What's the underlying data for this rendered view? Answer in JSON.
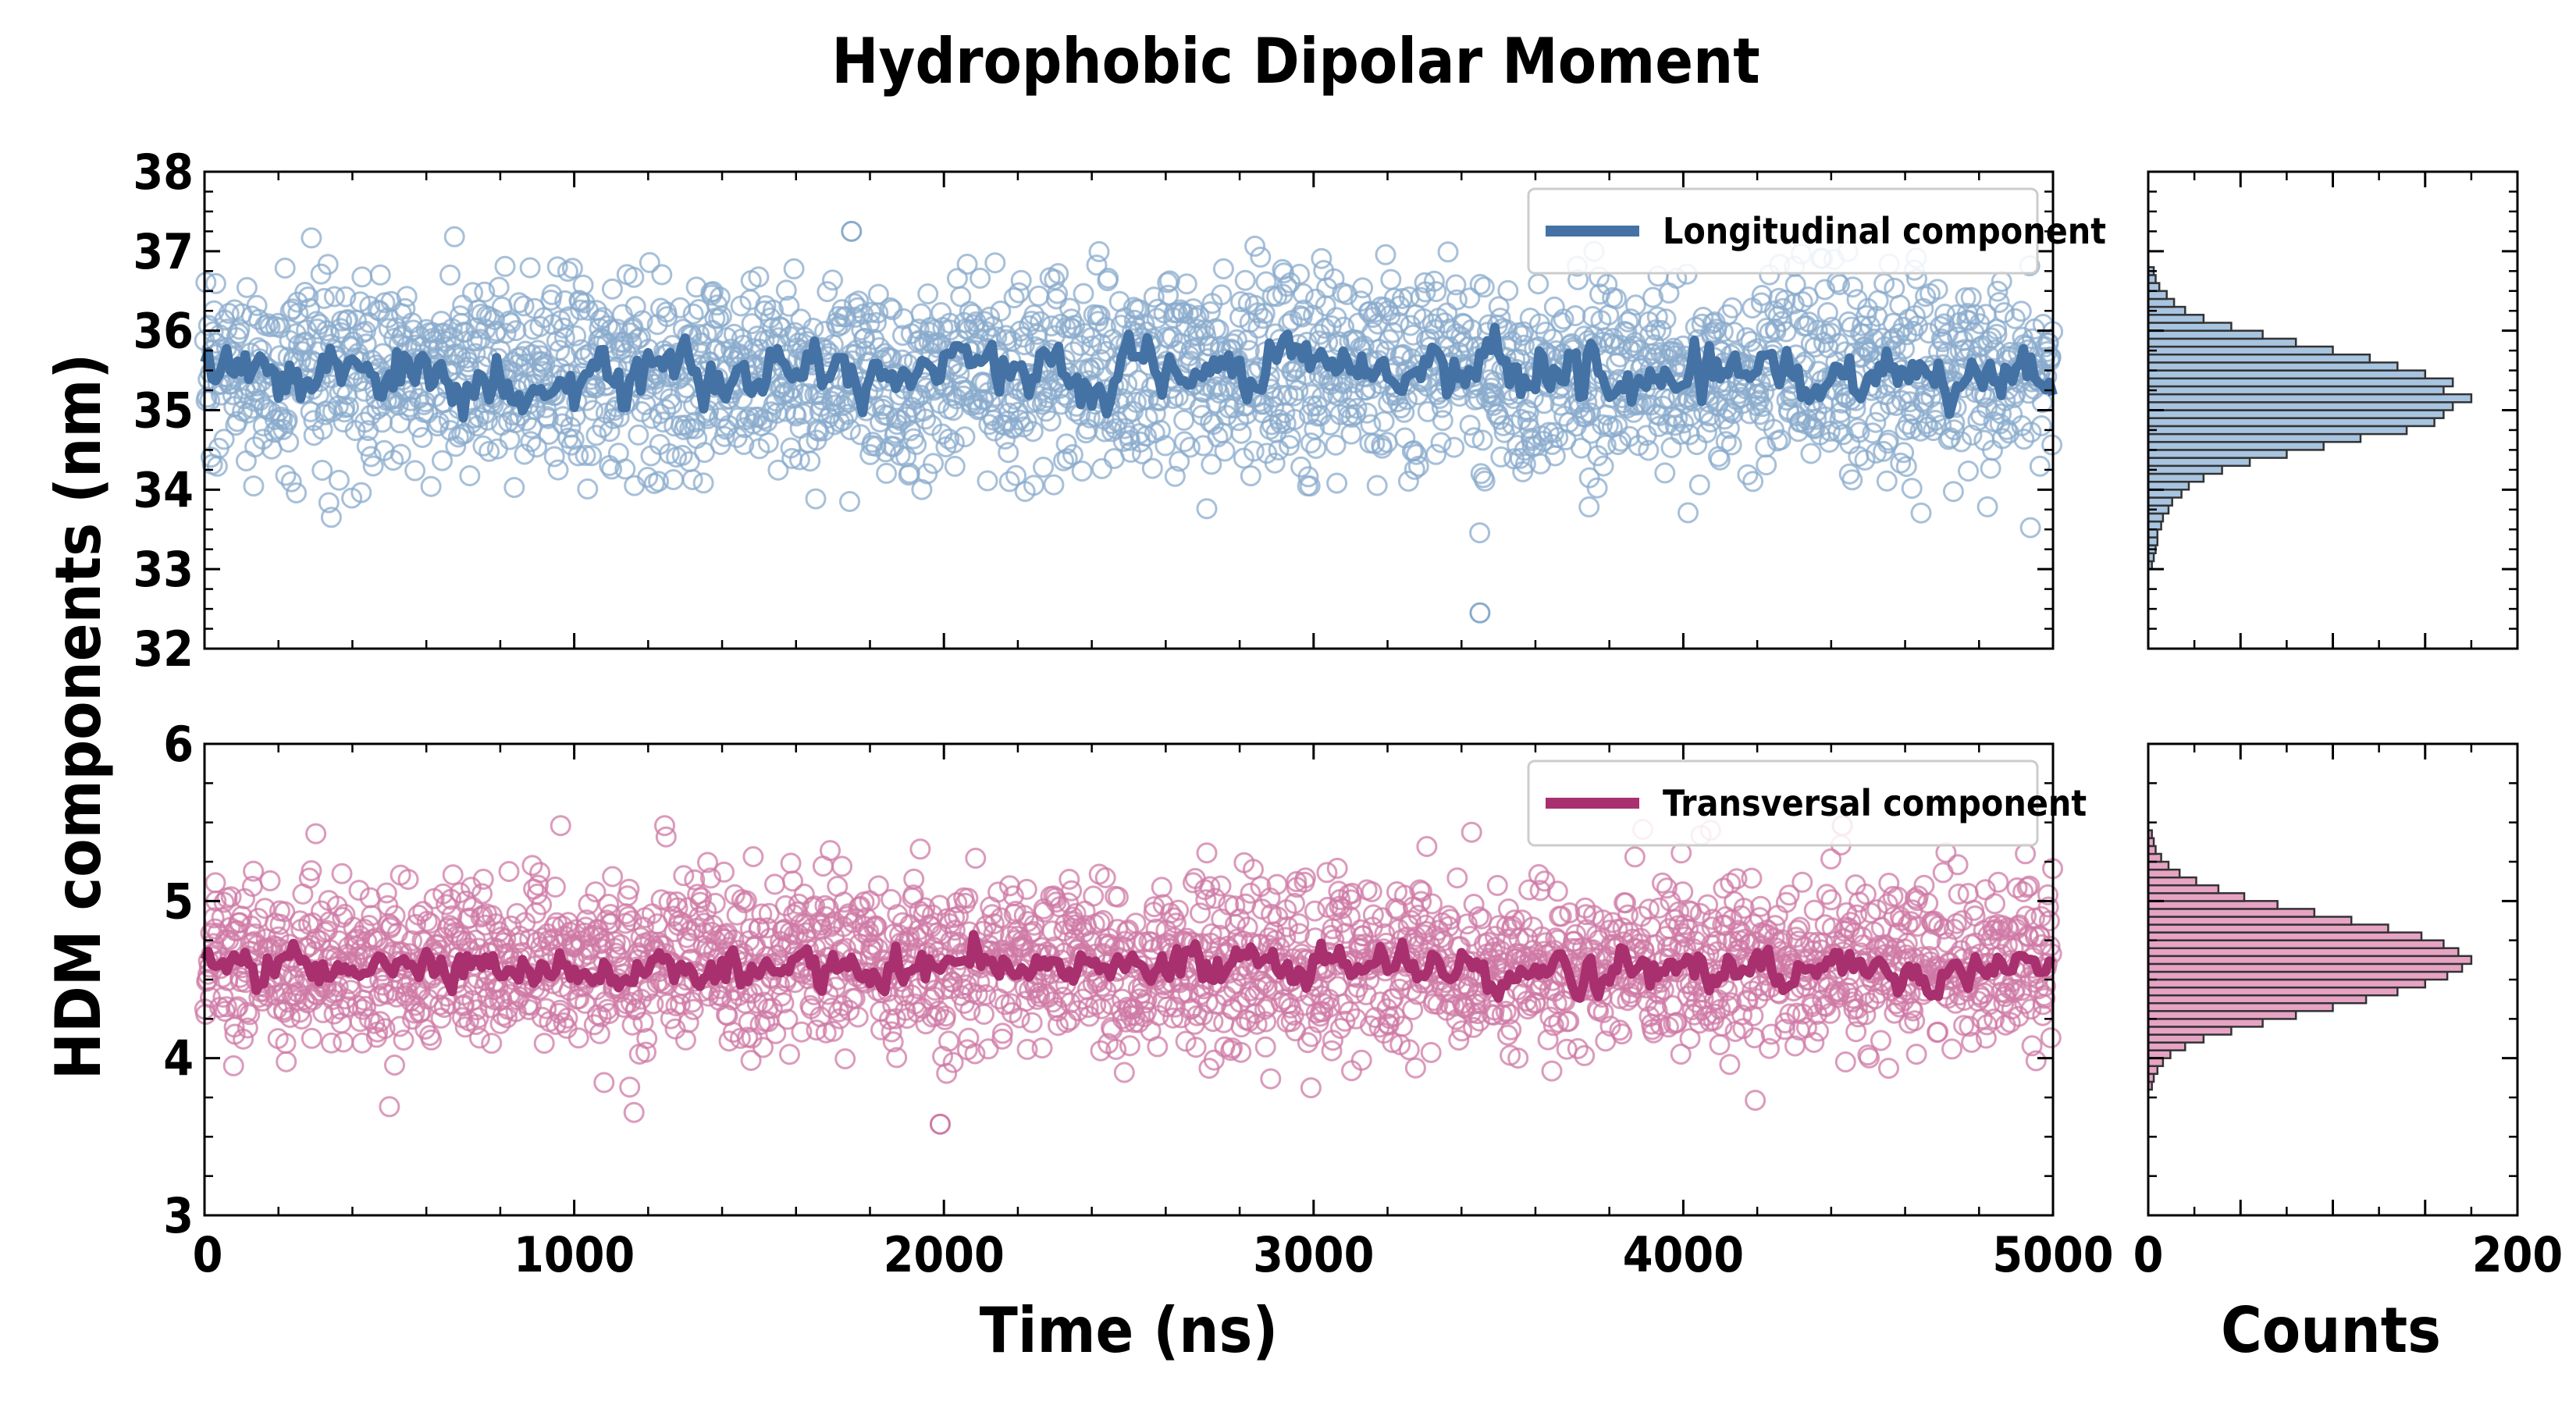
{
  "chart_data": {
    "type": "scatter",
    "title": "Hydrophobic Dipolar Moment",
    "xlabel": "Time (ns)",
    "ylabel": "HDM components (nm)",
    "hist_xlabel": "Counts",
    "x_range": [
      0,
      5000
    ],
    "x_ticks": [
      0,
      1000,
      2000,
      3000,
      4000,
      5000
    ],
    "hist_x_range": [
      0,
      200
    ],
    "hist_x_ticks": [
      0,
      200
    ],
    "grid": false,
    "tick_direction": "in",
    "panels": [
      {
        "legend_label": "Longitudinal component",
        "legend_position": "top-right",
        "ylim": [
          32,
          38
        ],
        "y_ticks": [
          32,
          33,
          34,
          35,
          36,
          37,
          38
        ],
        "line_color": "#4472a4",
        "marker_color": "#8aabcc",
        "hist_fill": "#a7c4e0",
        "scatter_mean": 35.45,
        "scatter_sd": 0.62,
        "scatter_min": 32.45,
        "scatter_max": 37.25,
        "running_average_mean": 35.45,
        "running_average_range": [
          34.7,
          36.15
        ],
        "hist_bin_width": 0.1,
        "hist_bin_start": 33.0,
        "hist_counts": [
          2,
          3,
          4,
          5,
          5,
          7,
          8,
          11,
          13,
          18,
          22,
          30,
          40,
          55,
          75,
          95,
          115,
          140,
          155,
          160,
          165,
          175,
          160,
          165,
          150,
          135,
          120,
          100,
          80,
          62,
          45,
          30,
          20,
          14,
          10,
          6,
          4,
          3
        ]
      },
      {
        "legend_label": "Transversal component",
        "legend_position": "top-right",
        "ylim": [
          3,
          6
        ],
        "y_ticks": [
          3,
          4,
          5,
          6
        ],
        "line_color": "#a8306f",
        "marker_color": "#cf7aa5",
        "hist_fill": "#e7a3c4",
        "scatter_mean": 4.6,
        "scatter_sd": 0.27,
        "scatter_min": 3.58,
        "scatter_max": 5.48,
        "running_average_mean": 4.58,
        "running_average_range": [
          4.35,
          4.85
        ],
        "hist_bin_width": 0.05,
        "hist_bin_start": 3.8,
        "hist_counts": [
          2,
          3,
          5,
          8,
          12,
          20,
          30,
          45,
          62,
          80,
          100,
          118,
          135,
          150,
          162,
          170,
          175,
          168,
          160,
          148,
          130,
          110,
          90,
          70,
          52,
          38,
          26,
          17,
          11,
          7,
          4,
          3,
          2
        ]
      }
    ]
  }
}
